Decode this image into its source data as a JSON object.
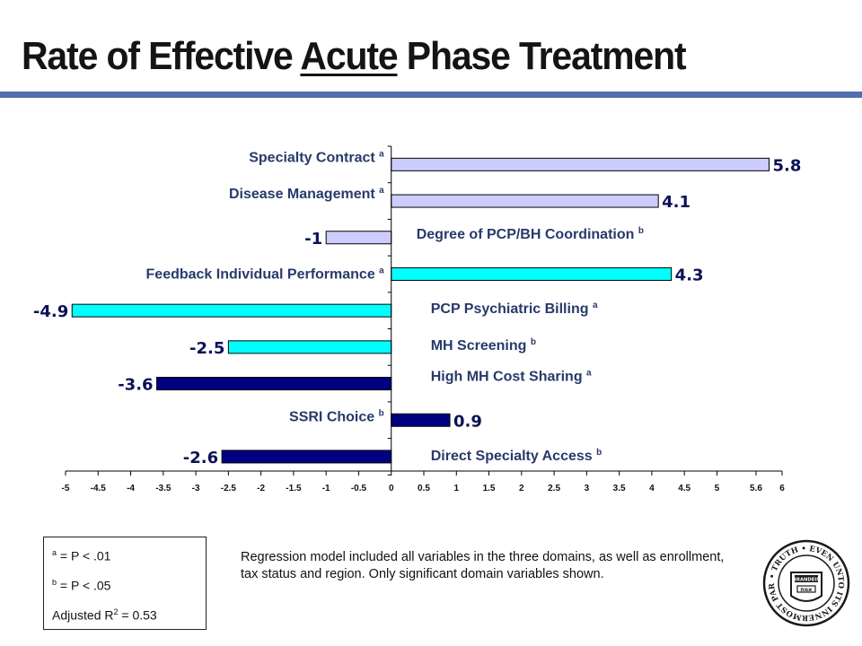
{
  "slide": {
    "title_before": "Rate of Effective ",
    "title_underlined": "Acute",
    "title_after": " Phase Treatment",
    "accent_color": "#4f6fb2"
  },
  "chart_data": {
    "type": "bar",
    "orientation": "horizontal",
    "categories": [
      "Specialty Contract",
      "Disease Management",
      "Degree of PCP/BH Coordination",
      "Feedback Individual Performance",
      "PCP Psychiatric Billing",
      "MH Screening",
      "High MH Cost Sharing",
      "SSRI Choice",
      "Direct Specialty Access"
    ],
    "significance": [
      "a",
      "a",
      "b",
      "a",
      "a",
      "b",
      "a",
      "b",
      "b"
    ],
    "values": [
      5.8,
      4.1,
      -1,
      4.3,
      -4.9,
      -2.5,
      -3.6,
      0.9,
      -2.6
    ],
    "value_labels": [
      "5.8",
      "4.1",
      "-1",
      "4.3",
      "-4.9",
      "-2.5",
      "-3.6",
      "0.9",
      "-2.6"
    ],
    "colors": [
      "#ccccff",
      "#ccccff",
      "#ccccff",
      "#00ffff",
      "#00ffff",
      "#00ffff",
      "#000080",
      "#000080",
      "#000080"
    ],
    "xlim": [
      -5,
      6
    ],
    "xticks": [
      -5,
      -4.5,
      -4,
      -3.5,
      -3,
      -2.5,
      -2,
      -1.5,
      -1,
      -0.5,
      0,
      0.5,
      1,
      1.5,
      2,
      2.5,
      3,
      3.5,
      4,
      4.5,
      5,
      5.6,
      6
    ],
    "xtick_labels": [
      "-5",
      "-4.5",
      "-4",
      "-3.5",
      "-3",
      "-2.5",
      "-2",
      "-1.5",
      "-1",
      "-0.5",
      "0",
      "0.5",
      "1",
      "1.5",
      "2",
      "2.5",
      "3",
      "3.5",
      "4",
      "4.5",
      "5",
      "5.6",
      "6"
    ],
    "title": "",
    "xlabel": "",
    "ylabel": "",
    "grid": false,
    "legend": "none"
  },
  "legend": {
    "sup_a": "a",
    "text_a": " = P < .01",
    "sup_b": "b",
    "text_b": " = P < .05",
    "r2_prefix": "Adjusted R",
    "r2_sup": "2",
    "r2_value": " = 0.53"
  },
  "note": "Regression model included all variables in the three domains, as well as enrollment, tax status and region. Only significant domain variables shown.",
  "seal": {
    "arc_top": "TRUTH",
    "arc_right": "EVEN UNTO ITS INNERMOST PARTS",
    "book_top": "BRANDEIS",
    "book_bottom": "אמת",
    "colors": {
      "ink": "#1a1a1a",
      "paper": "#ffffff"
    }
  }
}
